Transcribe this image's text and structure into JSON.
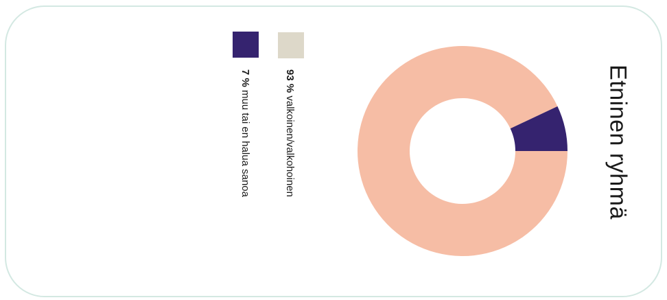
{
  "chart_data": {
    "type": "pie",
    "style": "donut",
    "title": "Etninen ryhmä",
    "slices": [
      {
        "label": "valkoinen/valkohoinen",
        "value": 93,
        "value_label": "93 %",
        "color": "#f6bda5",
        "legend_color": "#ddd8c9"
      },
      {
        "label": "muu tai en halua sanoa",
        "value": 7,
        "value_label": "7 %",
        "color": "#35236f",
        "legend_color": "#35236f"
      }
    ],
    "legend_placement": "left"
  },
  "colors": {
    "card_border": "#d3e8e2"
  }
}
